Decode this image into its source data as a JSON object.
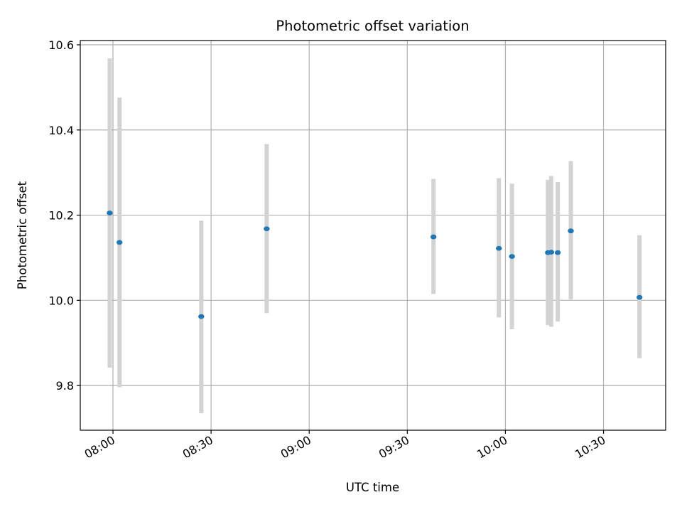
{
  "chart_data": {
    "type": "scatter",
    "title": "Photometric offset variation",
    "xlabel": "UTC time",
    "ylabel": "Photometric offset",
    "x_axis": "time",
    "xlim": [
      "07:50",
      "10:49"
    ],
    "ylim": [
      9.695,
      10.61
    ],
    "x_ticks": [
      "08:00",
      "08:30",
      "09:00",
      "09:30",
      "10:00",
      "10:30"
    ],
    "y_ticks": [
      9.8,
      10.0,
      10.2,
      10.4,
      10.6
    ],
    "y_tick_labels": [
      "9.8",
      "10.0",
      "10.2",
      "10.4",
      "10.6"
    ],
    "grid": true,
    "legend": false,
    "colors": {
      "points": "#1f77b4",
      "error_bars": "#d3d3d3",
      "grid": "#b0b0b0"
    },
    "series": [
      {
        "points": [
          {
            "x": "07:59",
            "y": 10.205,
            "ylow": 9.842,
            "yhigh": 10.568
          },
          {
            "x": "08:02",
            "y": 10.136,
            "ylow": 9.796,
            "yhigh": 10.476
          },
          {
            "x": "08:27",
            "y": 9.962,
            "ylow": 9.735,
            "yhigh": 10.187
          },
          {
            "x": "08:47",
            "y": 10.168,
            "ylow": 9.97,
            "yhigh": 10.367
          },
          {
            "x": "09:38",
            "y": 10.149,
            "ylow": 10.015,
            "yhigh": 10.285
          },
          {
            "x": "09:58",
            "y": 10.122,
            "ylow": 9.96,
            "yhigh": 10.287
          },
          {
            "x": "10:02",
            "y": 10.103,
            "ylow": 9.932,
            "yhigh": 10.274
          },
          {
            "x": "10:13",
            "y": 10.112,
            "ylow": 9.942,
            "yhigh": 10.283
          },
          {
            "x": "10:14",
            "y": 10.113,
            "ylow": 9.938,
            "yhigh": 10.292
          },
          {
            "x": "10:16",
            "y": 10.112,
            "ylow": 9.95,
            "yhigh": 10.278
          },
          {
            "x": "10:20",
            "y": 10.163,
            "ylow": 10.002,
            "yhigh": 10.327
          },
          {
            "x": "10:41",
            "y": 10.007,
            "ylow": 9.864,
            "yhigh": 10.153
          }
        ]
      }
    ]
  }
}
